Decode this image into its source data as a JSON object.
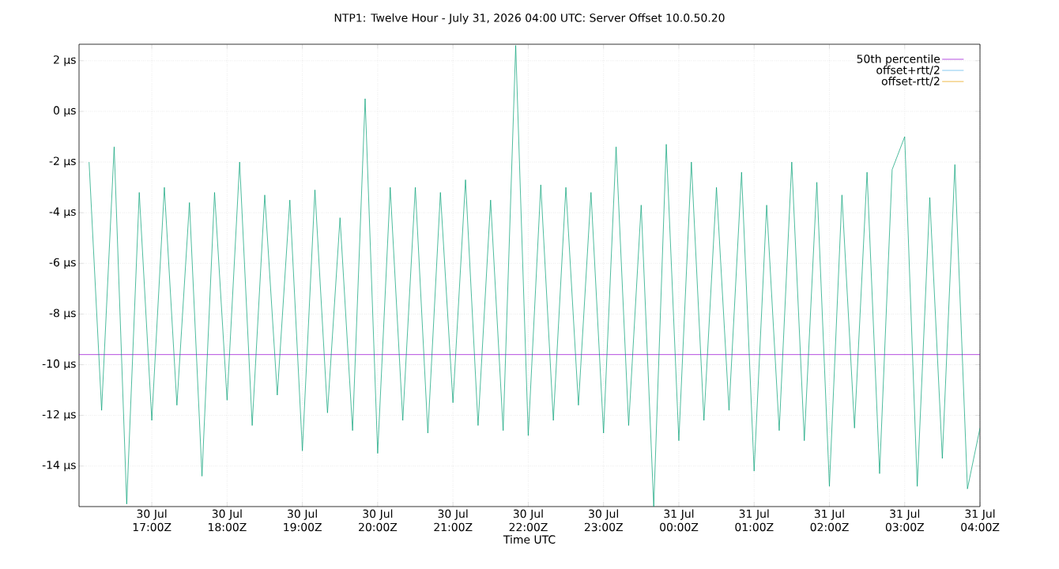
{
  "chart_data": {
    "type": "line",
    "title": "NTP1: Twelve Hour - July 31, 2026 04:00 UTC: Server Offset 10.0.50.20",
    "xlabel": "Time UTC",
    "xlim": [
      "2026-07-30T16:02",
      "2026-07-31T04:00"
    ],
    "xticks": [
      {
        "value": "2026-07-30T17:00",
        "label": "30 Jul 17:00Z"
      },
      {
        "value": "2026-07-30T18:00",
        "label": "30 Jul 18:00Z"
      },
      {
        "value": "2026-07-30T19:00",
        "label": "30 Jul 19:00Z"
      },
      {
        "value": "2026-07-30T20:00",
        "label": "30 Jul 20:00Z"
      },
      {
        "value": "2026-07-30T21:00",
        "label": "30 Jul 21:00Z"
      },
      {
        "value": "2026-07-30T22:00",
        "label": "30 Jul 22:00Z"
      },
      {
        "value": "2026-07-30T23:00",
        "label": "30 Jul 23:00Z"
      },
      {
        "value": "2026-07-31T00:00",
        "label": "31 Jul 00:00Z"
      },
      {
        "value": "2026-07-31T01:00",
        "label": "31 Jul 01:00Z"
      },
      {
        "value": "2026-07-31T02:00",
        "label": "31 Jul 02:00Z"
      },
      {
        "value": "2026-07-31T03:00",
        "label": "31 Jul 03:00Z"
      },
      {
        "value": "2026-07-31T04:00",
        "label": "31 Jul 04:00Z"
      }
    ],
    "ylim": [
      -15.6,
      2.65
    ],
    "yticks": [
      {
        "value": -14,
        "label": "-14 µs"
      },
      {
        "value": -12,
        "label": "-12 µs"
      },
      {
        "value": -10,
        "label": "-10 µs"
      },
      {
        "value": -8,
        "label": "-8 µs"
      },
      {
        "value": -6,
        "label": "-6 µs"
      },
      {
        "value": -4,
        "label": "-4 µs"
      },
      {
        "value": -2,
        "label": "-2 µs"
      },
      {
        "value": 0,
        "label": "0 µs"
      },
      {
        "value": 2,
        "label": "2 µs"
      }
    ],
    "grid": true,
    "legend": "top right",
    "marker": "none",
    "line_style": "solid",
    "series": [
      {
        "name": "50th percentile",
        "color": "#9400d3",
        "x": [
          "2026-07-30T16:02",
          "2026-07-31T04:00"
        ],
        "values": [
          -9.6,
          -9.6
        ]
      },
      {
        "color": "#009e73",
        "x": [
          "2026-07-30T16:10",
          "2026-07-30T16:20",
          "2026-07-30T16:30",
          "2026-07-30T16:40",
          "2026-07-30T16:50",
          "2026-07-30T17:00",
          "2026-07-30T17:10",
          "2026-07-30T17:20",
          "2026-07-30T17:30",
          "2026-07-30T17:40",
          "2026-07-30T17:50",
          "2026-07-30T18:00",
          "2026-07-30T18:10",
          "2026-07-30T18:20",
          "2026-07-30T18:30",
          "2026-07-30T18:40",
          "2026-07-30T18:50",
          "2026-07-30T19:00",
          "2026-07-30T19:10",
          "2026-07-30T19:20",
          "2026-07-30T19:30",
          "2026-07-30T19:40",
          "2026-07-30T19:50",
          "2026-07-30T20:00",
          "2026-07-30T20:10",
          "2026-07-30T20:20",
          "2026-07-30T20:30",
          "2026-07-30T20:40",
          "2026-07-30T20:50",
          "2026-07-30T21:00",
          "2026-07-30T21:10",
          "2026-07-30T21:20",
          "2026-07-30T21:30",
          "2026-07-30T21:40",
          "2026-07-30T21:50",
          "2026-07-30T22:00",
          "2026-07-30T22:10",
          "2026-07-30T22:20",
          "2026-07-30T22:30",
          "2026-07-30T22:40",
          "2026-07-30T22:50",
          "2026-07-30T23:00",
          "2026-07-30T23:10",
          "2026-07-30T23:20",
          "2026-07-30T23:30",
          "2026-07-30T23:40",
          "2026-07-30T23:50",
          "2026-07-31T00:00",
          "2026-07-31T00:10",
          "2026-07-31T00:20",
          "2026-07-31T00:30",
          "2026-07-31T00:40",
          "2026-07-31T00:50",
          "2026-07-31T01:00",
          "2026-07-31T01:10",
          "2026-07-31T01:20",
          "2026-07-31T01:30",
          "2026-07-31T01:40",
          "2026-07-31T01:50",
          "2026-07-31T02:00",
          "2026-07-31T02:10",
          "2026-07-31T02:20",
          "2026-07-31T02:30",
          "2026-07-31T02:40",
          "2026-07-31T02:50",
          "2026-07-31T03:00",
          "2026-07-31T03:10",
          "2026-07-31T03:20",
          "2026-07-31T03:30",
          "2026-07-31T03:40",
          "2026-07-31T03:50",
          "2026-07-31T04:00"
        ],
        "values": [
          -2.0,
          -11.8,
          -1.4,
          -15.5,
          -3.2,
          -12.2,
          -3.0,
          -11.6,
          -3.6,
          -14.4,
          -3.2,
          -11.4,
          -2.0,
          -12.4,
          -3.3,
          -11.2,
          -3.5,
          -13.4,
          -3.1,
          -11.9,
          -4.2,
          -12.6,
          0.5,
          -13.5,
          -3.0,
          -12.2,
          -3.0,
          -12.7,
          -3.2,
          -11.5,
          -2.7,
          -12.4,
          -3.5,
          -12.6,
          2.6,
          -12.8,
          -2.9,
          -12.2,
          -3.0,
          -11.6,
          -3.2,
          -12.7,
          -1.4,
          -12.4,
          -3.7,
          -15.6,
          -1.3,
          -13.0,
          -2.0,
          -12.2,
          -3.0,
          -11.8,
          -2.4,
          -14.2,
          -3.7,
          -12.6,
          -2.0,
          -13.0,
          -2.8,
          -14.8,
          -3.3,
          -12.5,
          -2.4,
          -14.3,
          -2.3,
          -1.0,
          -14.8,
          -3.4,
          -13.7,
          -2.1,
          -14.9,
          -12.5
        ]
      },
      {
        "name": "offset+rtt/2",
        "color": "#56b4e9"
      },
      {
        "name": "offset-rtt/2",
        "color": "#e69f00"
      }
    ]
  }
}
